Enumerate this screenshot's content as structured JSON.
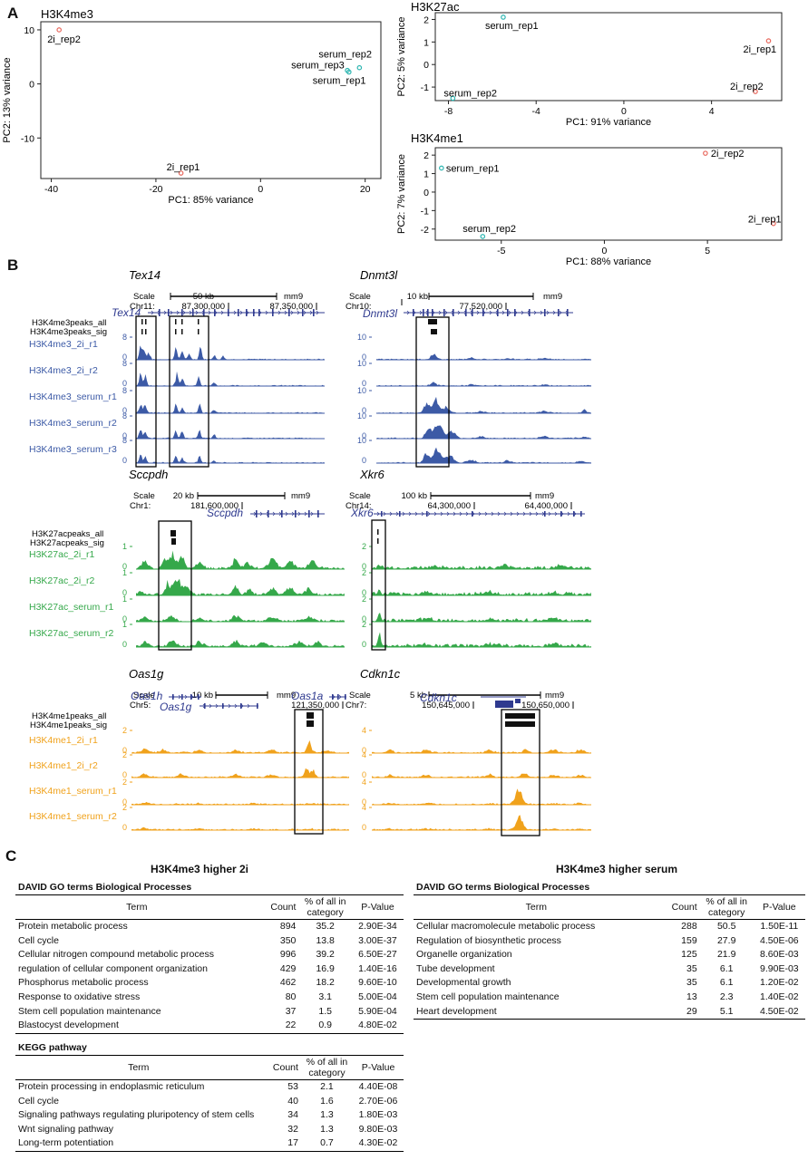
{
  "panels": {
    "A": "A",
    "B": "B",
    "C": "C"
  },
  "colors": {
    "serum": "#2bb5b0",
    "twoi": "#e8675c",
    "h3k4me3": "#3c5aa6",
    "h3k27ac": "#35a84a",
    "h3k4me1": "#f0a21c",
    "gene": "#2f3a8f"
  },
  "chart_data": [
    {
      "type": "scatter",
      "title": "H3K4me3",
      "xlabel": "PC1: 85% variance",
      "ylabel": "PC2: 13% variance",
      "xlim": [
        -42,
        23
      ],
      "ylim": [
        -17.5,
        11.5
      ],
      "xticks": [
        -40,
        -20,
        0,
        20
      ],
      "yticks": [
        10,
        0,
        -10
      ],
      "points": [
        {
          "label": "2i_rep2",
          "x": -38.5,
          "y": 10.0,
          "group": "2i"
        },
        {
          "label": "2i_rep1",
          "x": -15.2,
          "y": -16.5,
          "group": "2i"
        },
        {
          "label": "serum_rep2",
          "x": 18.9,
          "y": 3.0,
          "group": "serum"
        },
        {
          "label": "serum_rep3",
          "x": 16.6,
          "y": 2.5,
          "group": "serum"
        },
        {
          "label": "serum_rep1",
          "x": 16.9,
          "y": 2.2,
          "group": "serum"
        }
      ]
    },
    {
      "type": "scatter",
      "title": "H3K27ac",
      "xlabel": "PC1: 91% variance",
      "ylabel": "PC2: 5% variance",
      "xlim": [
        -8.6,
        7.2
      ],
      "ylim": [
        -1.6,
        2.3
      ],
      "xticks": [
        -8,
        -4,
        0,
        4
      ],
      "yticks": [
        2,
        1,
        0,
        -1
      ],
      "points": [
        {
          "label": "serum_rep1",
          "x": -5.5,
          "y": 2.1,
          "group": "serum"
        },
        {
          "label": "serum_rep2",
          "x": -7.8,
          "y": -1.5,
          "group": "serum"
        },
        {
          "label": "2i_rep1",
          "x": 6.6,
          "y": 1.05,
          "group": "2i"
        },
        {
          "label": "2i_rep2",
          "x": 6.0,
          "y": -1.2,
          "group": "2i"
        }
      ]
    },
    {
      "type": "scatter",
      "title": "H3K4me1",
      "xlabel": "PC1: 88% variance",
      "ylabel": "PC2: 7% variance",
      "xlim": [
        -8.2,
        8.6
      ],
      "ylim": [
        -2.6,
        2.4
      ],
      "xticks": [
        -5,
        0,
        5
      ],
      "yticks": [
        2,
        1,
        0,
        -1,
        -2
      ],
      "points": [
        {
          "label": "serum_rep1",
          "x": -7.9,
          "y": 1.3,
          "group": "serum"
        },
        {
          "label": "serum_rep2",
          "x": -5.9,
          "y": -2.4,
          "group": "serum"
        },
        {
          "label": "2i_rep2",
          "x": 4.9,
          "y": 2.1,
          "group": "2i"
        },
        {
          "label": "2i_rep1",
          "x": 8.2,
          "y": -1.7,
          "group": "2i"
        }
      ]
    }
  ],
  "browser": {
    "scale_label": "Scale",
    "assembly": "mm9",
    "peaks_me3": [
      "H3K4me3peaks_all",
      "H3K4me3peaks_sig"
    ],
    "peaks_ac": [
      "H3K27acpeaks_all",
      "H3K27acpeaks_sig"
    ],
    "peaks_me1": [
      "H3K4me1peaks_all",
      "H3K4me1peaks_sig"
    ],
    "tex14": {
      "gene": "Tex14",
      "chr": "Chr11:",
      "scalebar": "50 kb",
      "coord1": "87,300,000",
      "coord2": "87,350,000"
    },
    "dnmt3l": {
      "gene": "Dnmt3l",
      "chr": "Chr10:",
      "scalebar": "10 kb",
      "coord1": "77,520,000"
    },
    "sccpdh": {
      "gene": "Sccpdh",
      "chr": "Chr1:",
      "scalebar": "20 kb",
      "coord1": "181,600,000"
    },
    "xkr6": {
      "gene": "Xkr6",
      "chr": "Chr14:",
      "scalebar": "100 kb",
      "coord1": "64,300,000",
      "coord2": "64,400,000"
    },
    "oas1g": {
      "gene": "Oas1g",
      "chr": "Chr5:",
      "scalebar": "10 kb",
      "coord1": "121,350,000",
      "genes": [
        "Oas1h",
        "Oas1g",
        "Oas1a"
      ]
    },
    "cdkn1c": {
      "gene": "Cdkn1c",
      "chr": "Chr7:",
      "scalebar": "5 kb",
      "coord1": "150,645,000",
      "coord2": "150,650,000"
    },
    "tracks_me3": [
      "H3K4me3_2i_r1",
      "H3K4me3_2i_r2",
      "H3K4me3_serum_r1",
      "H3K4me3_serum_r2",
      "H3K4me3_serum_r3"
    ],
    "tracks_ac": [
      "H3K27ac_2i_r1",
      "H3K27ac_2i_r2",
      "H3K27ac_serum_r1",
      "H3K27ac_serum_r2"
    ],
    "tracks_me1": [
      "H3K4me1_2i_r1",
      "H3K4me1_2i_r2",
      "H3K4me1_serum_r1",
      "H3K4me1_serum_r2"
    ],
    "y_tex14": "8",
    "y_dnmt3l": "10",
    "y_sccpdh": "1",
    "y_xkr6": "2",
    "y_oas1g": "2",
    "y_cdkn1c": "4",
    "zero": "0"
  },
  "tables": {
    "left_title": "H3K4me3 higher 2i",
    "right_title": "H3K4me3 higher serum",
    "go_heading": "DAVID GO terms Biological Processes",
    "kegg_heading": "KEGG pathway",
    "headers": {
      "term": "Term",
      "count": "Count",
      "pct": "% of all in category",
      "pval": "P-Value"
    },
    "go_2i": [
      [
        "Protein metabolic process",
        "894",
        "35.2",
        "2.90E-34"
      ],
      [
        "Cell cycle",
        "350",
        "13.8",
        "3.00E-37"
      ],
      [
        "Cellular nitrogen compound metabolic process",
        "996",
        "39.2",
        "6.50E-27"
      ],
      [
        "regulation of cellular component organization",
        "429",
        "16.9",
        "1.40E-16"
      ],
      [
        "Phosphorus metabolic process",
        "462",
        "18.2",
        "9.60E-10"
      ],
      [
        "Response to oxidative stress",
        "80",
        "3.1",
        "5.00E-04"
      ],
      [
        "Stem cell population maintenance",
        "37",
        "1.5",
        "5.90E-04"
      ],
      [
        "Blastocyst development",
        "22",
        "0.9",
        "4.80E-02"
      ]
    ],
    "kegg_2i": [
      [
        "Protein processing in endoplasmic reticulum",
        "53",
        "2.1",
        "4.40E-08"
      ],
      [
        "Cell cycle",
        "40",
        "1.6",
        "2.70E-06"
      ],
      [
        "Signaling pathways regulating pluripotency of stem cells",
        "34",
        "1.3",
        "1.80E-03"
      ],
      [
        "Wnt signaling pathway",
        "32",
        "1.3",
        "9.80E-03"
      ],
      [
        "Long-term potentiation",
        "17",
        "0.7",
        "4.30E-02"
      ]
    ],
    "go_serum": [
      [
        "Cellular macromolecule metabolic process",
        "288",
        "50.5",
        "1.50E-11"
      ],
      [
        "Regulation of biosynthetic process",
        "159",
        "27.9",
        "4.50E-06"
      ],
      [
        "Organelle organization",
        "125",
        "21.9",
        "8.60E-03"
      ],
      [
        "Tube development",
        "35",
        "6.1",
        "9.90E-03"
      ],
      [
        "Developmental growth",
        "35",
        "6.1",
        "1.20E-02"
      ],
      [
        "Stem cell population maintenance",
        "13",
        "2.3",
        "1.40E-02"
      ],
      [
        "Heart development",
        "29",
        "5.1",
        "4.50E-02"
      ]
    ]
  }
}
